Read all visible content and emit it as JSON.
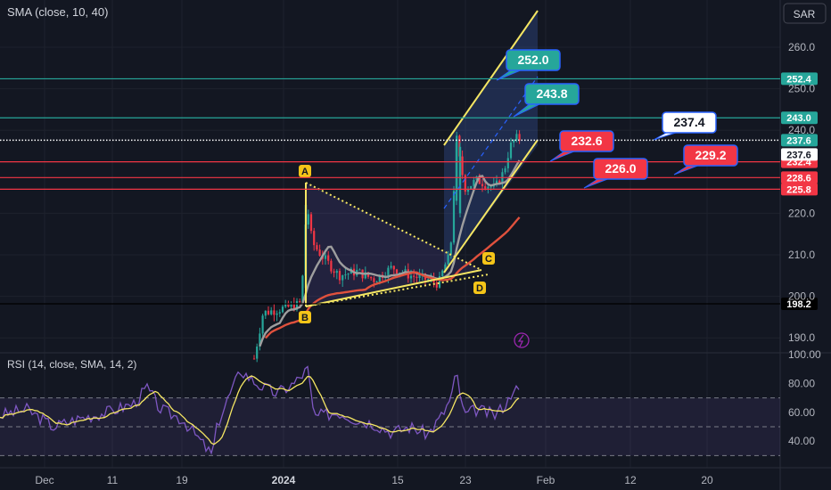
{
  "header": {
    "indicator": "SMA (close, 10, 40)",
    "currency": "SAR",
    "rsi_indicator": "RSI (14, close, SMA, 14, 2)"
  },
  "chart_data": {
    "type": "candlestick",
    "price_axis": {
      "ticks": [
        260.0,
        250.0,
        240.0,
        220.0,
        210.0,
        200.0,
        190.0
      ],
      "range": [
        185,
        270
      ]
    },
    "time_axis": {
      "ticks": [
        "Dec",
        "11",
        "19",
        "2024",
        "15",
        "23",
        "Feb",
        "12",
        "20"
      ]
    },
    "horizontal_levels": [
      {
        "value": 252.4,
        "label": "252.4",
        "color": "#26a69a"
      },
      {
        "value": 243.0,
        "label": "243.0",
        "color": "#26a69a"
      },
      {
        "value": 237.6,
        "label": "237.6",
        "color": "#26a69a",
        "dotted": true
      },
      {
        "value": 232.4,
        "label": "232.4",
        "color": "#f23645"
      },
      {
        "value": 228.6,
        "label": "228.6",
        "color": "#f23645"
      },
      {
        "value": 225.8,
        "label": "225.8",
        "color": "#f23645"
      },
      {
        "value": 198.2,
        "label": "198.2",
        "color": "#000000"
      }
    ],
    "current_price": {
      "value": 237.6,
      "label": "237.6"
    },
    "callouts": [
      {
        "label": "252.0",
        "color": "#26a69a",
        "text_color": "#ffffff"
      },
      {
        "label": "243.8",
        "color": "#26a69a",
        "text_color": "#ffffff"
      },
      {
        "label": "237.4",
        "color": "#ffffff",
        "text_color": "#131722"
      },
      {
        "label": "232.6",
        "color": "#f23645",
        "text_color": "#ffffff"
      },
      {
        "label": "226.0",
        "color": "#f23645",
        "text_color": "#ffffff"
      },
      {
        "label": "229.2",
        "color": "#f23645",
        "text_color": "#ffffff"
      }
    ],
    "pattern_points": [
      "A",
      "B",
      "C",
      "D"
    ],
    "rsi": {
      "ticks": [
        100.0,
        80.0,
        60.0,
        40.0
      ],
      "range": [
        30,
        100
      ],
      "levels": [
        70,
        50,
        30
      ]
    },
    "colors": {
      "up": "#26a69a",
      "down": "#f23645",
      "sma_fast": "#9e9e9e",
      "sma_slow": "#e0513d",
      "rsi": "#7e57c2",
      "rsi_sma": "#f5e663",
      "channel": "#f5e663"
    }
  }
}
